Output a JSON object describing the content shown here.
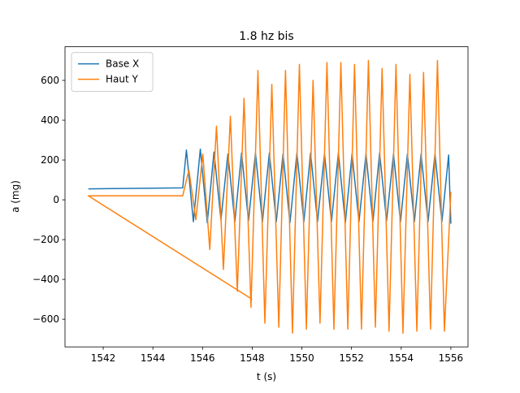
{
  "chart_data": {
    "type": "line",
    "title": "1.8 hz bis",
    "x_label": "t (s)",
    "y_label": "a (mg)",
    "xlim": [
      1540.46,
      1556.69
    ],
    "ylim": [
      -739,
      769
    ],
    "xticks": [
      1542,
      1544,
      1546,
      1548,
      1550,
      1552,
      1554,
      1556
    ],
    "yticks": [
      {
        "value": -600,
        "label": "−600"
      },
      {
        "value": -400,
        "label": "−400"
      },
      {
        "value": -200,
        "label": "−200"
      },
      0,
      200,
      400,
      600
    ],
    "legend": "upper left",
    "series": [
      {
        "name": "Base X",
        "color": "#1f77b4",
        "x": [
          1541.4,
          1545.2,
          1545.35,
          1545.63,
          1545.91,
          1546.19,
          1546.46,
          1546.74,
          1547.02,
          1547.3,
          1547.57,
          1547.85,
          1548.13,
          1548.41,
          1548.69,
          1548.97,
          1549.24,
          1549.52,
          1549.8,
          1550.08,
          1550.35,
          1550.63,
          1550.91,
          1551.19,
          1551.47,
          1551.75,
          1552.02,
          1552.3,
          1552.58,
          1552.86,
          1553.13,
          1553.41,
          1553.69,
          1553.97,
          1554.25,
          1554.53,
          1554.8,
          1555.08,
          1555.36,
          1555.64,
          1555.91,
          1556.0
        ],
        "values": [
          55,
          60,
          250,
          -110,
          255,
          -115,
          240,
          -100,
          230,
          -110,
          235,
          -105,
          235,
          -110,
          235,
          -110,
          230,
          -115,
          235,
          -110,
          235,
          -110,
          230,
          -110,
          235,
          -115,
          230,
          -110,
          230,
          -110,
          235,
          -105,
          230,
          -110,
          230,
          -110,
          230,
          -110,
          230,
          -110,
          225,
          -120
        ]
      },
      {
        "name": "Haut Y",
        "color": "#ff7f0e",
        "x": [
          1548.0,
          1541.4,
          1545.2,
          1545.45,
          1545.73,
          1546.01,
          1546.29,
          1546.56,
          1546.84,
          1547.12,
          1547.4,
          1547.67,
          1547.95,
          1548.23,
          1548.51,
          1548.79,
          1549.07,
          1549.34,
          1549.62,
          1549.9,
          1550.18,
          1550.45,
          1550.73,
          1551.01,
          1551.29,
          1551.57,
          1551.85,
          1552.12,
          1552.4,
          1552.68,
          1552.96,
          1553.23,
          1553.51,
          1553.79,
          1554.07,
          1554.35,
          1554.63,
          1554.9,
          1555.18,
          1555.46,
          1555.74,
          1556.0
        ],
        "values": [
          -500,
          20,
          20,
          150,
          -100,
          230,
          -250,
          370,
          -350,
          420,
          -460,
          510,
          -540,
          650,
          -620,
          580,
          -640,
          650,
          -670,
          680,
          -650,
          600,
          -620,
          690,
          -650,
          690,
          -650,
          680,
          -650,
          700,
          -640,
          660,
          -660,
          680,
          -670,
          630,
          -660,
          640,
          -650,
          700,
          -660,
          40
        ]
      }
    ]
  }
}
